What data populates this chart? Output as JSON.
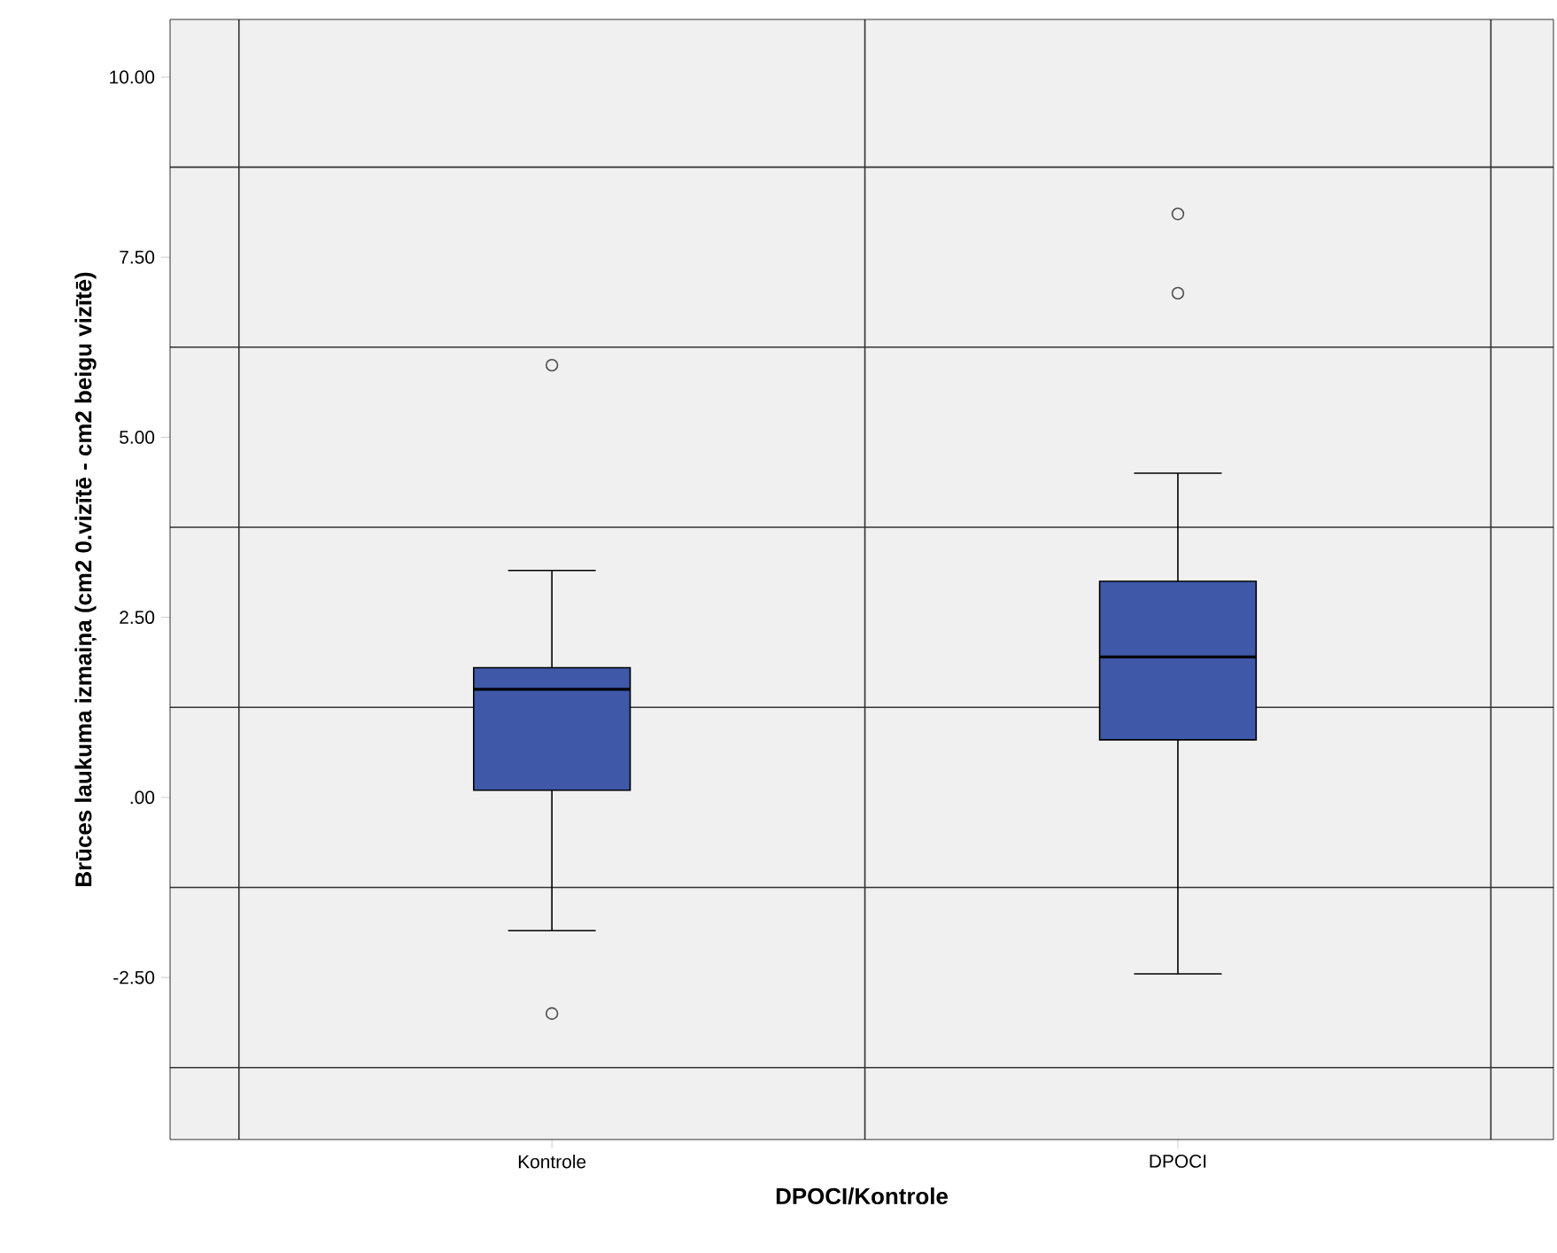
{
  "chart_data": {
    "type": "box",
    "xlabel": "DPOCI/Kontrole",
    "ylabel": "Brūces laukuma izmaiņa (cm2 0.vizītē - cm2 beigu vizītē)",
    "categories": [
      "Kontrole",
      "DPOCI"
    ],
    "color": "#3f58a8",
    "boxes": [
      {
        "low": -1.85,
        "q1": 0.1,
        "median": 1.5,
        "q3": 1.8,
        "high": 3.15,
        "outliers": [
          6.0,
          -3.0
        ]
      },
      {
        "low": -2.45,
        "q1": 0.8,
        "median": 1.95,
        "q3": 3.0,
        "high": 4.5,
        "outliers": [
          8.1,
          7.0
        ]
      }
    ],
    "ylim": [
      -4.75,
      10.8
    ],
    "yticks": [
      {
        "value": -2.5,
        "label": "-2.50"
      },
      {
        "value": 0,
        "label": ".00"
      },
      {
        "value": 2.5,
        "label": "2.50"
      },
      {
        "value": 5,
        "label": "5.00"
      },
      {
        "value": 7.5,
        "label": "7.50"
      },
      {
        "value": 10,
        "label": "10.00"
      }
    ],
    "grid": true,
    "marker": "circle"
  }
}
